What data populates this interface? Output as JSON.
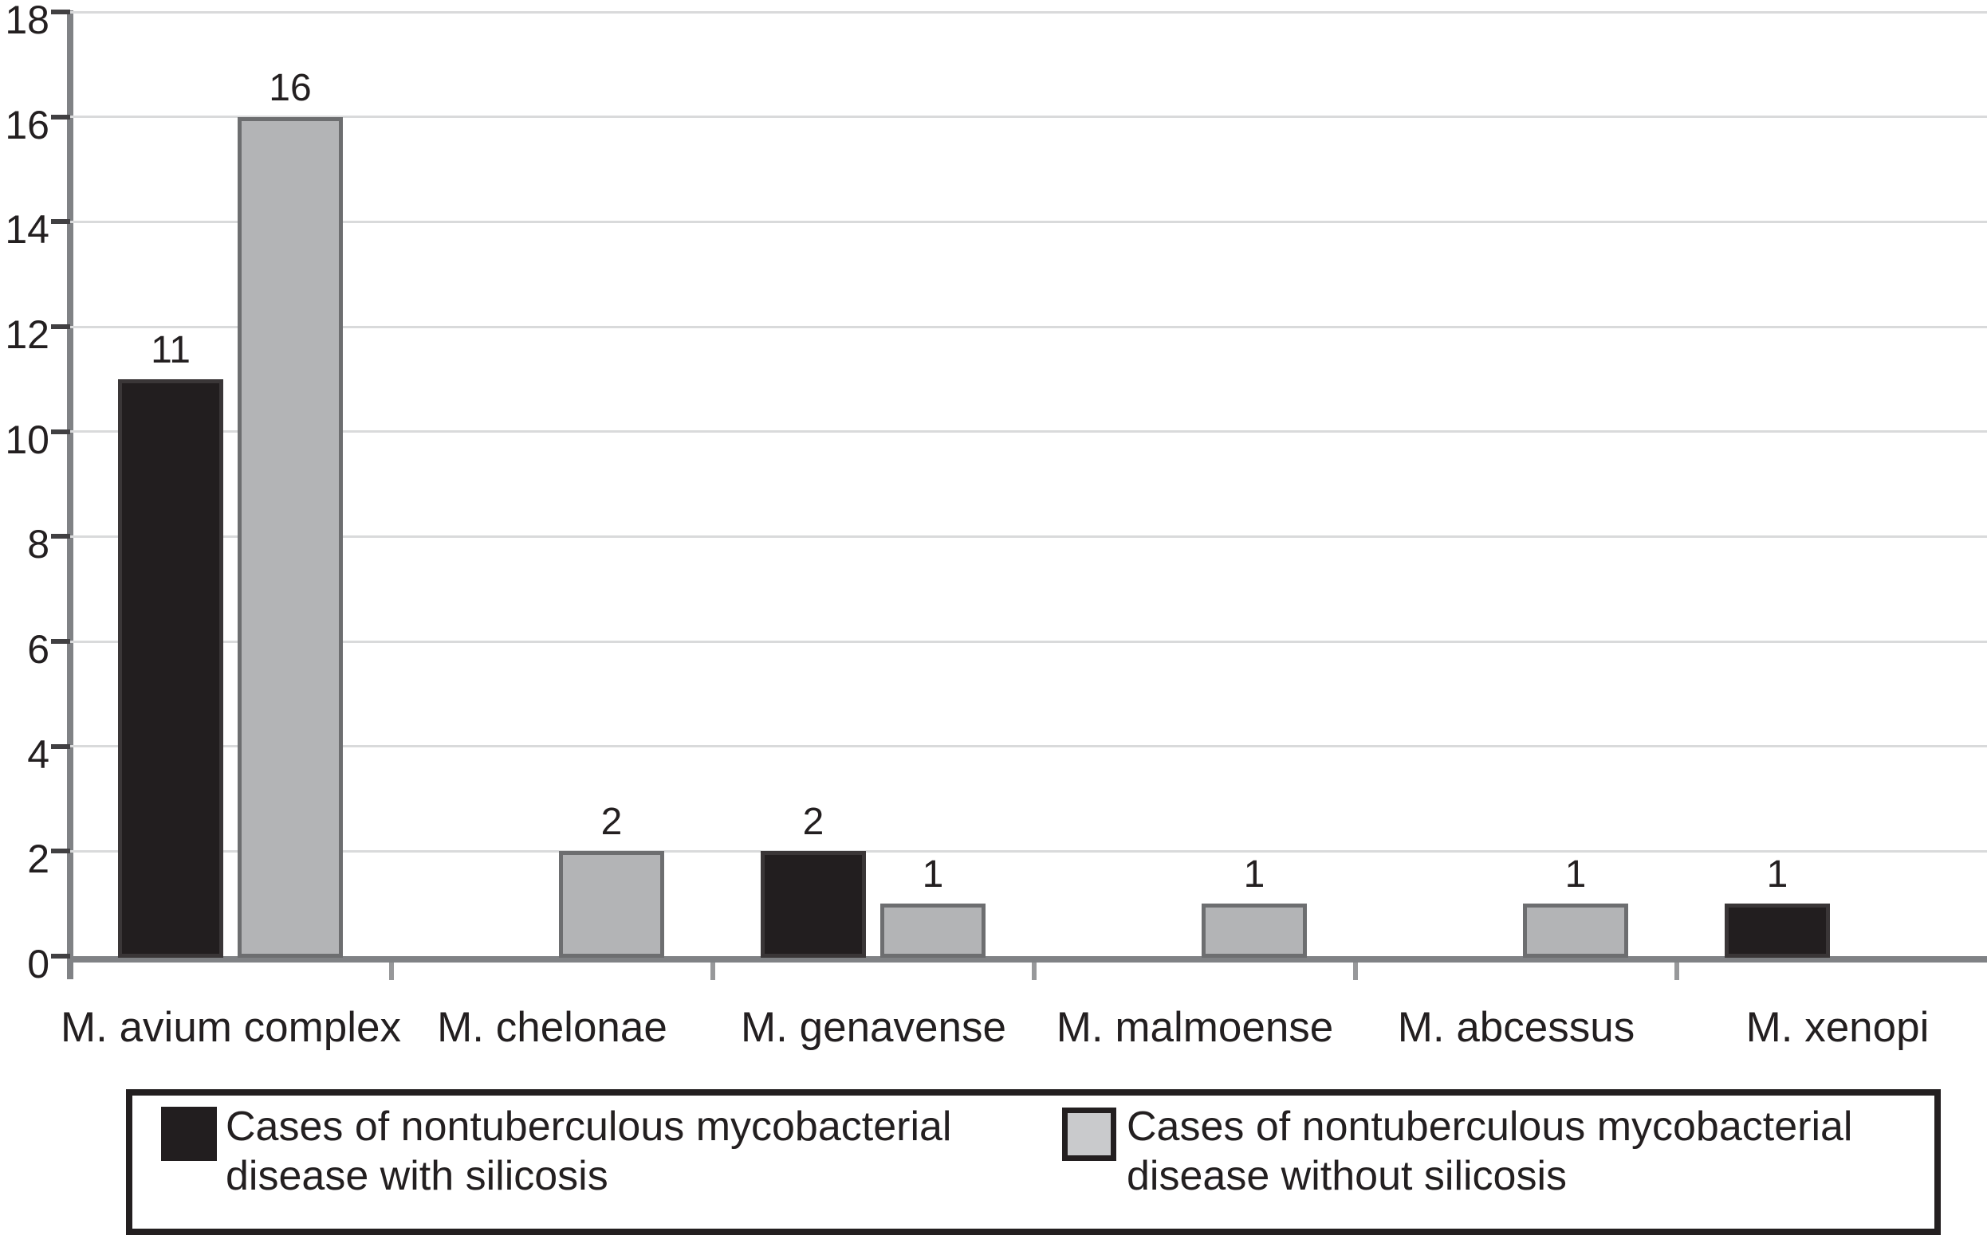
{
  "chart_data": {
    "type": "bar",
    "title": "",
    "xlabel": "",
    "ylabel": "",
    "categories": [
      "M. avium complex",
      "M. chelonae",
      "M. genavense",
      "M. malmoense",
      "M. abcessus",
      "M. xenopi"
    ],
    "series": [
      {
        "name": "Cases of nontuberculous mycobacterial disease with silicosis",
        "color": "#221e1f",
        "border_color": "#3a3637",
        "values": [
          11,
          0,
          2,
          0,
          0,
          1
        ]
      },
      {
        "name": "Cases of nontuberculous mycobacterial disease without silicosis",
        "color": "#b3b4b6",
        "border_color": "#6d6e70",
        "values": [
          16,
          2,
          1,
          1,
          1,
          0
        ]
      }
    ],
    "bar_value_labels": true,
    "zero_values_hidden": true,
    "ylim": [
      0,
      18
    ],
    "ytick_step": 2,
    "ytick_labels": [
      "0",
      "2",
      "4",
      "6",
      "8",
      "10",
      "12",
      "14",
      "16",
      "18"
    ],
    "grid": true,
    "legend_position": "bottom"
  },
  "legend": {
    "items": [
      {
        "swatch_color": "#221e1f",
        "line1": "Cases of nontuberculous mycobacterial",
        "line2": "disease with silicosis"
      },
      {
        "swatch_color": "#c9cacc",
        "line1": "Cases of nontuberculous mycobacterial",
        "line2": "disease without silicosis"
      }
    ]
  },
  "colors": {
    "axis": "#808285",
    "gridline": "#d9dadb",
    "y_tick": "#414042",
    "x_boundary_tick": "#97989a",
    "text": "#231f20",
    "background": "#ffffff"
  }
}
